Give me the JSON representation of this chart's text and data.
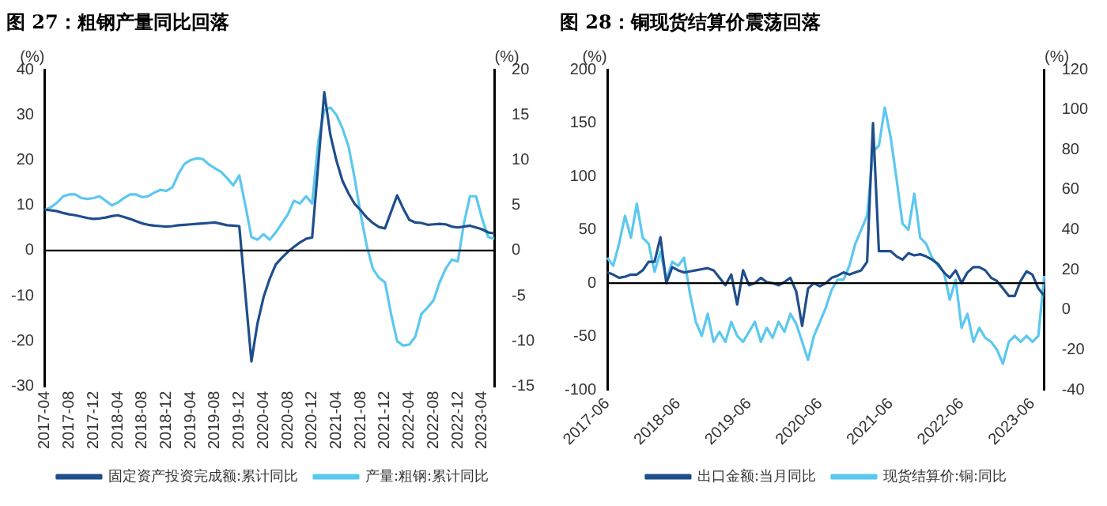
{
  "chart_data": [
    {
      "type": "line",
      "title": "图 27：粗钢产量同比回落",
      "ylabel": "(%)",
      "y2label": "(%)",
      "categories": [
        "2017-04",
        null,
        null,
        null,
        "2017-08",
        null,
        null,
        null,
        "2017-12",
        null,
        null,
        null,
        "2018-04",
        null,
        null,
        null,
        "2018-08",
        null,
        null,
        null,
        "2018-12",
        null,
        null,
        null,
        "2019-04",
        null,
        null,
        null,
        "2019-08",
        null,
        null,
        null,
        "2019-12",
        null,
        null,
        null,
        "2020-04",
        null,
        null,
        null,
        "2020-08",
        null,
        null,
        null,
        "2020-12",
        null,
        null,
        null,
        "2021-04",
        null,
        null,
        null,
        "2021-08",
        null,
        null,
        null,
        "2021-12",
        null,
        null,
        null,
        "2022-04",
        null,
        null,
        null,
        "2022-08",
        null,
        null,
        null,
        "2022-12",
        null,
        null,
        null,
        "2023-04",
        null,
        null
      ],
      "series": [
        {
          "name": "固定资产投资完成额:累计同比",
          "color": "#1f4e8c",
          "axis": "y",
          "values": [
            9,
            8.9,
            8.7,
            8.3,
            8,
            7.8,
            7.5,
            7.2,
            7,
            7.1,
            7.3,
            7.6,
            7.8,
            7.4,
            7,
            6.5,
            6,
            5.7,
            5.5,
            5.4,
            5.3,
            5.4,
            5.6,
            5.7,
            5.8,
            5.9,
            6,
            6.1,
            6.2,
            5.9,
            5.6,
            5.5,
            5.4,
            null,
            -24.5,
            -16.1,
            -10.3,
            -6.3,
            -3.1,
            -1.6,
            -0.3,
            0.8,
            1.8,
            2.6,
            2.9,
            null,
            35,
            25.6,
            19.9,
            15.4,
            12.6,
            10.3,
            8.9,
            7.3,
            6.1,
            5.2,
            4.9,
            null,
            12.2,
            9.3,
            6.8,
            6.2,
            6.1,
            5.7,
            5.8,
            5.9,
            5.8,
            5.3,
            5.1,
            null,
            5.5,
            5.1,
            4.7,
            4,
            3.8
          ]
        },
        {
          "name": "产量:粗钢:累计同比",
          "color": "#5bc8f0",
          "axis": "y2",
          "values": [
            4.5,
            4.8,
            5.3,
            6,
            6.2,
            6.2,
            5.8,
            5.7,
            5.8,
            6,
            5.5,
            5,
            5.3,
            5.8,
            6.2,
            6.2,
            5.9,
            6,
            6.4,
            6.7,
            6.6,
            7,
            8.5,
            9.6,
            10,
            10.2,
            10.1,
            9.5,
            9.1,
            8.7,
            8,
            7.2,
            8.3,
            5,
            1.5,
            1.2,
            1.8,
            1.2,
            2,
            3,
            4,
            5.5,
            5.2,
            6,
            5.2,
            12,
            15.5,
            15.8,
            15,
            13.5,
            11.5,
            8,
            4,
            0.5,
            -2,
            -3,
            -3.5,
            -7,
            -10,
            -10.5,
            -10.4,
            -9.5,
            -7,
            -6.3,
            -5.5,
            -3.5,
            -2,
            -1,
            -1.2,
            3,
            6,
            6,
            3.5,
            1.5,
            1.3
          ]
        }
      ],
      "ylim": [
        -30,
        40
      ],
      "yticks": [
        -30,
        -20,
        -10,
        0,
        10,
        20,
        30,
        40
      ],
      "y2lim": [
        -15,
        20
      ],
      "y2ticks": [
        -15,
        -10,
        -5,
        0,
        5,
        10,
        15,
        20
      ],
      "ref_lines": [
        {
          "axis": "y",
          "value": 0,
          "color": "#000000"
        }
      ],
      "grid": false,
      "legend": "bottom",
      "marker": "none",
      "line_style": "solid"
    },
    {
      "type": "line",
      "title": "图 28：铜现货结算价震荡回落",
      "ylabel": "(%)",
      "y2label": "(%)",
      "categories": [
        "2017-06",
        null,
        null,
        null,
        null,
        null,
        null,
        null,
        null,
        null,
        null,
        null,
        "2018-06",
        null,
        null,
        null,
        null,
        null,
        null,
        null,
        null,
        null,
        null,
        null,
        "2019-06",
        null,
        null,
        null,
        null,
        null,
        null,
        null,
        null,
        null,
        null,
        null,
        "2020-06",
        null,
        null,
        null,
        null,
        null,
        null,
        null,
        null,
        null,
        null,
        null,
        "2021-06",
        null,
        null,
        null,
        null,
        null,
        null,
        null,
        null,
        null,
        null,
        null,
        "2022-06",
        null,
        null,
        null,
        null,
        null,
        null,
        null,
        null,
        null,
        null,
        null,
        "2023-06",
        null,
        null
      ],
      "series": [
        {
          "name": "出口金额:当月同比",
          "color": "#1f4e8c",
          "axis": "y",
          "values": [
            10,
            8,
            5,
            6,
            8,
            8,
            12,
            20,
            20,
            43,
            0,
            15,
            12,
            10,
            11,
            12,
            13,
            14,
            12,
            5,
            -2,
            8,
            -20,
            12,
            -2,
            0,
            5,
            1,
            0,
            -2,
            1,
            5,
            -8,
            -40,
            -5,
            0,
            -3,
            0,
            5,
            7,
            10,
            8,
            10,
            12,
            20,
            150,
            30,
            30,
            30,
            25,
            22,
            28,
            26,
            27,
            25,
            22,
            18,
            10,
            5,
            12,
            0,
            10,
            15,
            15,
            12,
            5,
            2,
            -5,
            -12,
            -12,
            2,
            11,
            8,
            -5,
            -12
          ]
        },
        {
          "name": "现货结算价:铜:同比",
          "color": "#5bc8f0",
          "axis": "y2",
          "values": [
            26,
            22,
            33,
            47,
            36,
            53,
            36,
            33,
            19,
            29,
            15,
            24,
            22,
            26,
            8,
            -6,
            -13,
            -2,
            -16,
            -11,
            -16,
            -6,
            -13,
            -16,
            -11,
            -6,
            -16,
            -9,
            -14,
            -6,
            -11,
            -2,
            -7,
            -16,
            -25,
            -13,
            -6,
            1,
            10,
            15,
            15,
            22,
            33,
            40,
            47,
            79,
            82,
            101,
            86,
            65,
            43,
            40,
            58,
            36,
            33,
            26,
            22,
            19,
            5,
            15,
            -9,
            -2,
            -16,
            -9,
            -14,
            -16,
            -20,
            -27,
            -16,
            -13,
            -16,
            -13,
            -16,
            -13,
            17
          ]
        }
      ],
      "ylim": [
        -100,
        200
      ],
      "yticks": [
        -100,
        -50,
        0,
        50,
        100,
        150,
        200
      ],
      "y2lim": [
        -40,
        120
      ],
      "y2ticks": [
        -40,
        -20,
        0,
        20,
        40,
        60,
        80,
        100,
        120
      ],
      "ref_lines": [
        {
          "axis": "y",
          "value": 0,
          "color": "#000000"
        }
      ],
      "grid": false,
      "legend": "bottom",
      "marker": "none",
      "line_style": "solid"
    }
  ]
}
